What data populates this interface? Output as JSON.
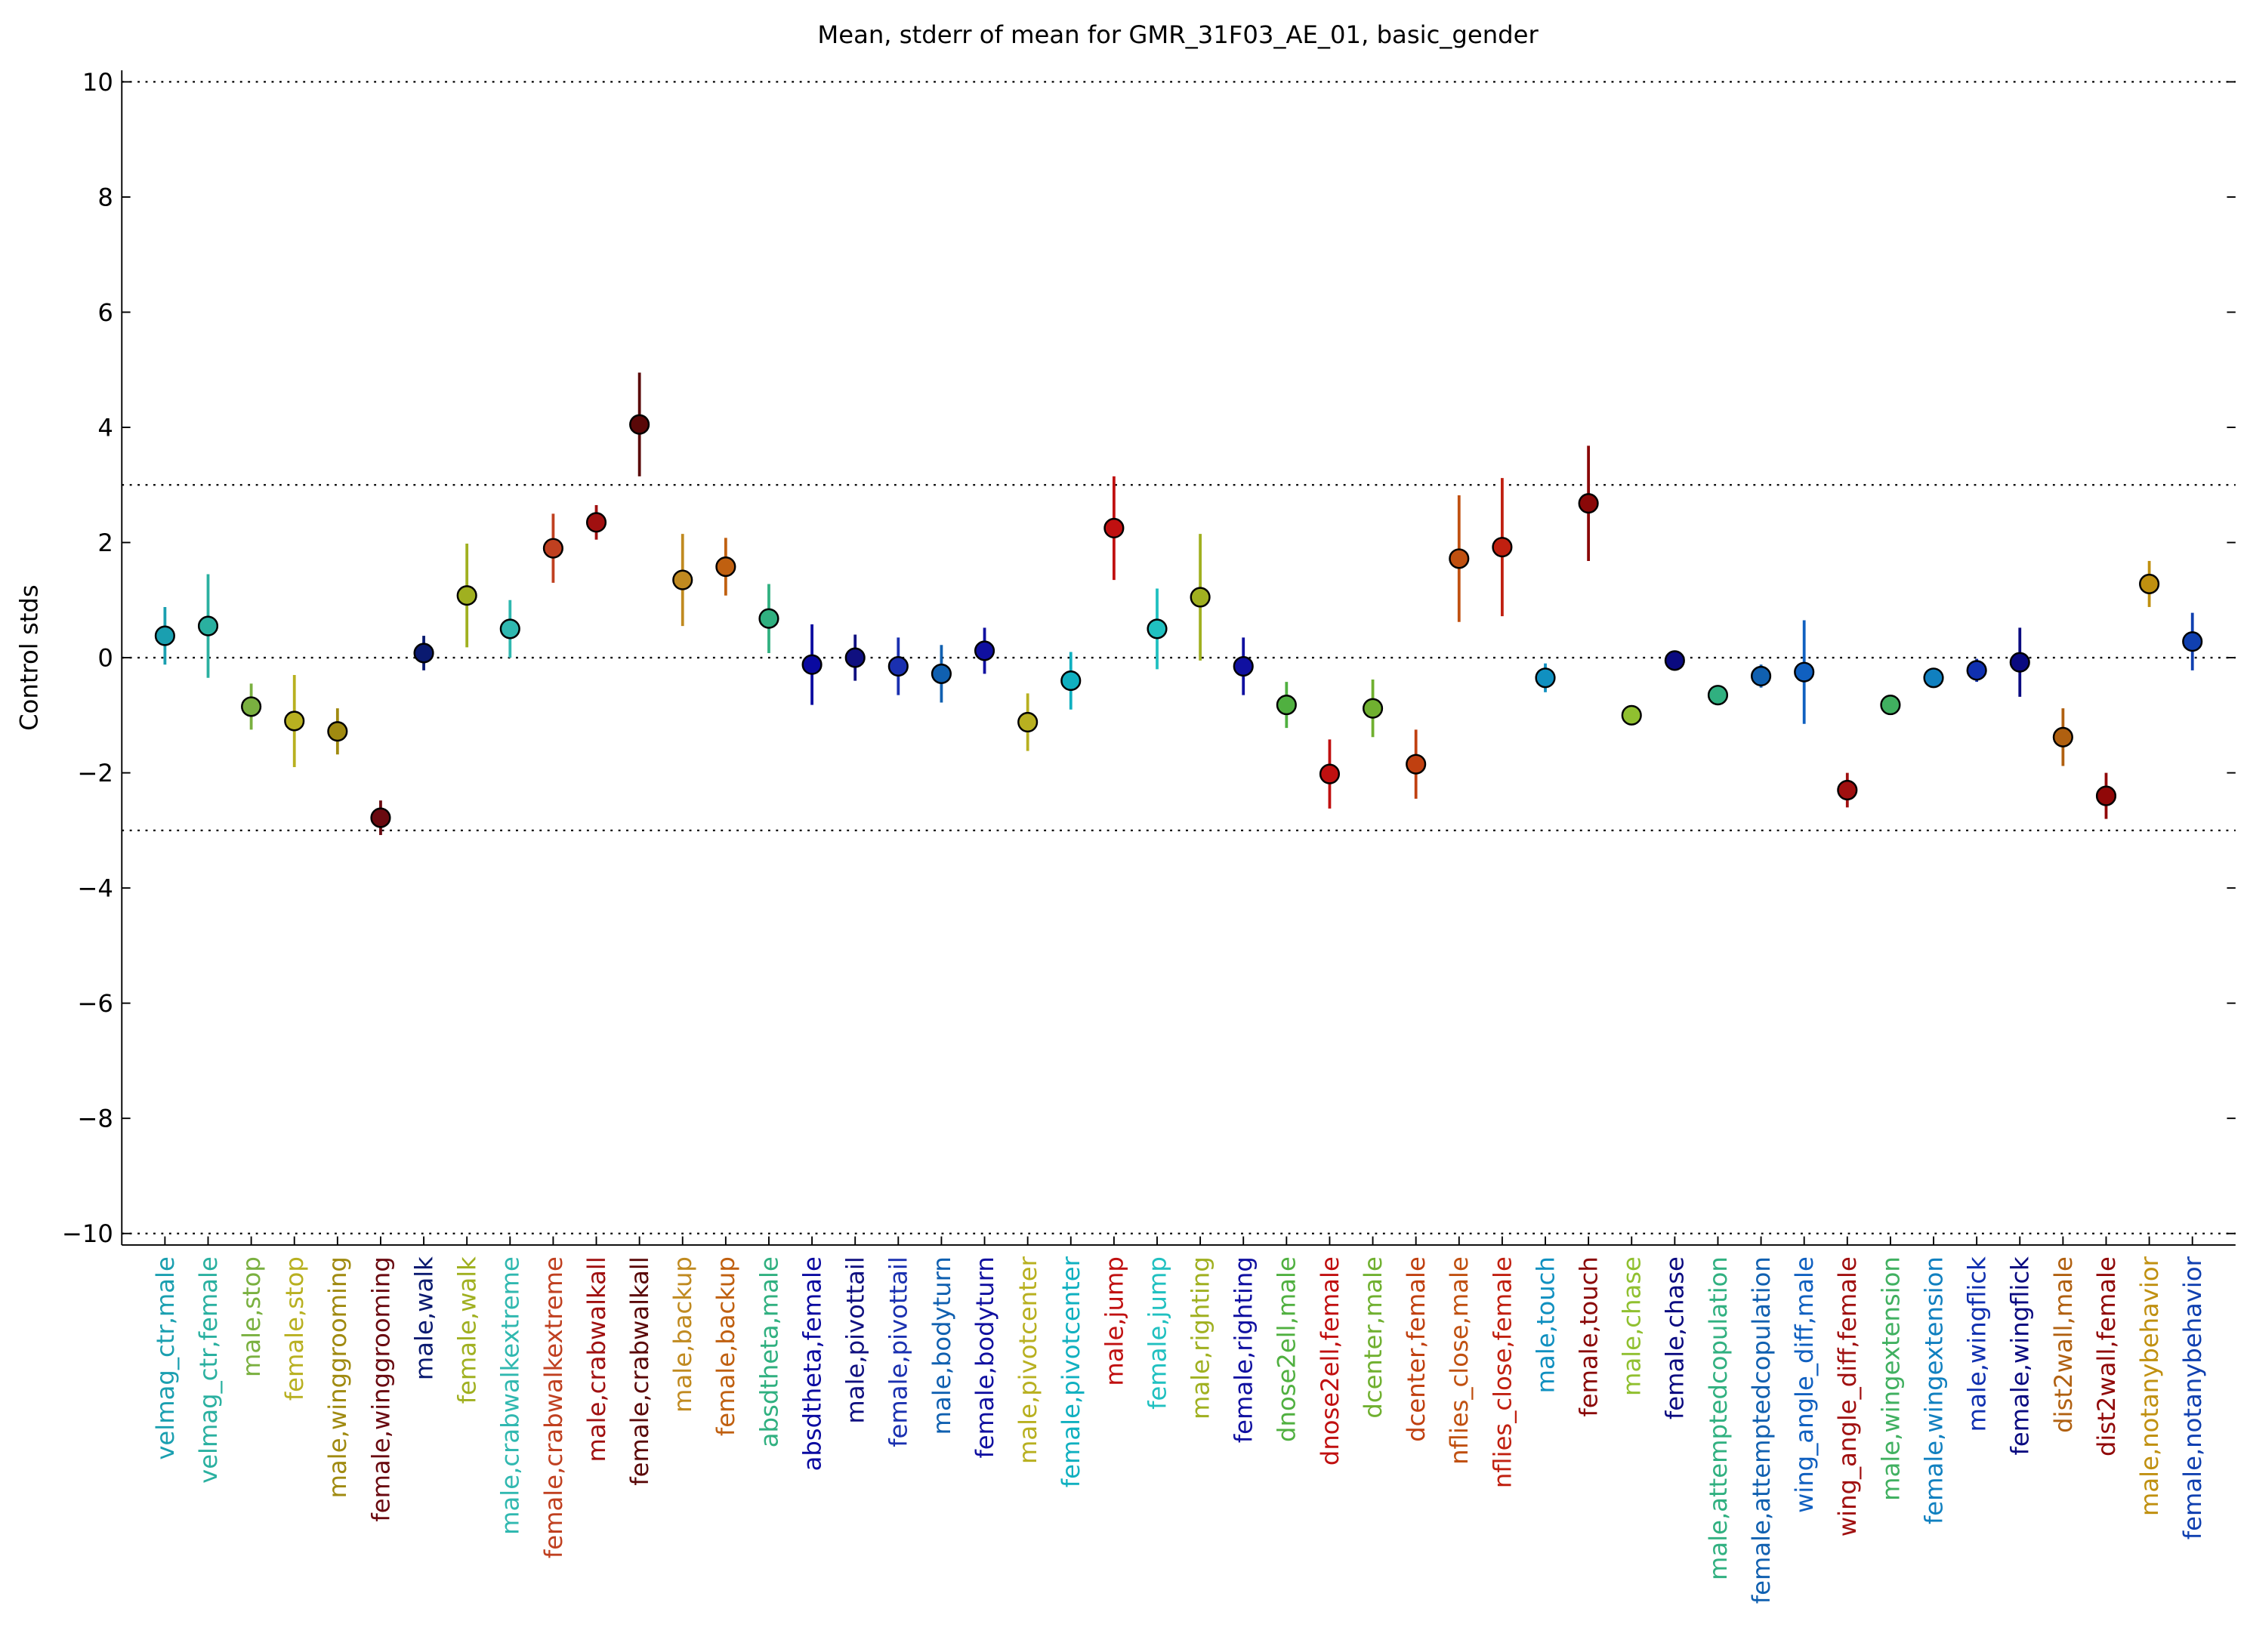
{
  "chart_data": {
    "type": "errorbar",
    "title": "Mean, stderr of mean for GMR_31F03_AE_01, basic_gender",
    "y_label": "Control stds",
    "xlim": [
      0,
      49
    ],
    "ylim": [
      -10.2,
      10.2
    ],
    "yticks": [
      {
        "value": -10,
        "label": "−10"
      },
      {
        "value": -8,
        "label": "−8"
      },
      {
        "value": -6,
        "label": "−6"
      },
      {
        "value": -4,
        "label": "−4"
      },
      {
        "value": -2,
        "label": "−2"
      },
      0,
      2,
      4,
      6,
      8,
      10
    ],
    "reference_lines": [
      10,
      3,
      0,
      -3,
      -10
    ],
    "categories": [
      "velmag_ctr,male",
      "velmag_ctr,female",
      "male,stop",
      "female,stop",
      "male,winggrooming",
      "female,winggrooming",
      "male,walk",
      "female,walk",
      "male,crabwalkextreme",
      "female,crabwalkextreme",
      "male,crabwalkall",
      "female,crabwalkall",
      "male,backup",
      "female,backup",
      "absdtheta,male",
      "absdtheta,female",
      "male,pivottail",
      "female,pivottail",
      "male,bodyturn",
      "female,bodyturn",
      "male,pivotcenter",
      "female,pivotcenter",
      "male,jump",
      "female,jump",
      "male,righting",
      "female,righting",
      "dnose2ell,male",
      "dnose2ell,female",
      "dcenter,male",
      "dcenter,female",
      "nflies_close,male",
      "nflies_close,female",
      "male,touch",
      "female,touch",
      "male,chase",
      "female,chase",
      "male,attemptedcopulation",
      "female,attemptedcopulation",
      "wing_angle_diff,male",
      "wing_angle_diff,female",
      "male,wingextension",
      "female,wingextension",
      "male,wingflick",
      "female,wingflick",
      "dist2wall,male",
      "dist2wall,female",
      "male,notanybehavior",
      "female,notanybehavior"
    ],
    "values": [
      0.38,
      0.55,
      -0.85,
      -1.1,
      -1.28,
      -2.78,
      0.08,
      1.08,
      0.5,
      1.9,
      2.35,
      4.05,
      1.35,
      1.58,
      0.68,
      -0.12,
      0.0,
      -0.15,
      -0.28,
      0.12,
      -1.12,
      -0.4,
      2.25,
      0.5,
      1.05,
      -0.15,
      -0.82,
      -2.02,
      -0.88,
      -1.85,
      1.72,
      1.92,
      -0.35,
      2.68,
      -1.0,
      -0.05,
      -0.65,
      -0.32,
      -0.25,
      -2.3,
      -0.82,
      -0.35,
      -0.22,
      -0.08,
      -1.38,
      -2.4,
      1.28,
      0.28
    ],
    "errors": [
      0.5,
      0.9,
      0.4,
      0.8,
      0.4,
      0.3,
      0.3,
      0.9,
      0.5,
      0.6,
      0.3,
      0.9,
      0.8,
      0.5,
      0.6,
      0.7,
      0.4,
      0.5,
      0.5,
      0.4,
      0.5,
      0.5,
      0.9,
      0.7,
      1.1,
      0.5,
      0.4,
      0.6,
      0.5,
      0.6,
      1.1,
      1.2,
      0.25,
      1.0,
      0.1,
      0.15,
      0.1,
      0.2,
      0.9,
      0.3,
      0.1,
      0.15,
      0.2,
      0.6,
      0.5,
      0.4,
      0.4,
      0.5
    ],
    "colors": [
      "#1a9fb0",
      "#2ab0a0",
      "#7ab040",
      "#b8b020",
      "#a08a10",
      "#6a0a10",
      "#0a1a70",
      "#a0b020",
      "#30b8b0",
      "#c04020",
      "#a01010",
      "#5a0808",
      "#c08a20",
      "#c06010",
      "#30b080",
      "#0a0aa0",
      "#101080",
      "#1a30b0",
      "#1060b0",
      "#1010a0",
      "#b8b020",
      "#10b0c0",
      "#c01010",
      "#20c0c0",
      "#a0b020",
      "#1010a0",
      "#50b040",
      "#c01010",
      "#70b030",
      "#c04010",
      "#c05010",
      "#c02010",
      "#1090c0",
      "#8a0808",
      "#90c030",
      "#0a0a80",
      "#30b080",
      "#1060b0",
      "#1060c0",
      "#a01010",
      "#40b060",
      "#1080c0",
      "#1030b0",
      "#0a0a80",
      "#b06010",
      "#900808",
      "#c09010",
      "#1040b0"
    ]
  }
}
